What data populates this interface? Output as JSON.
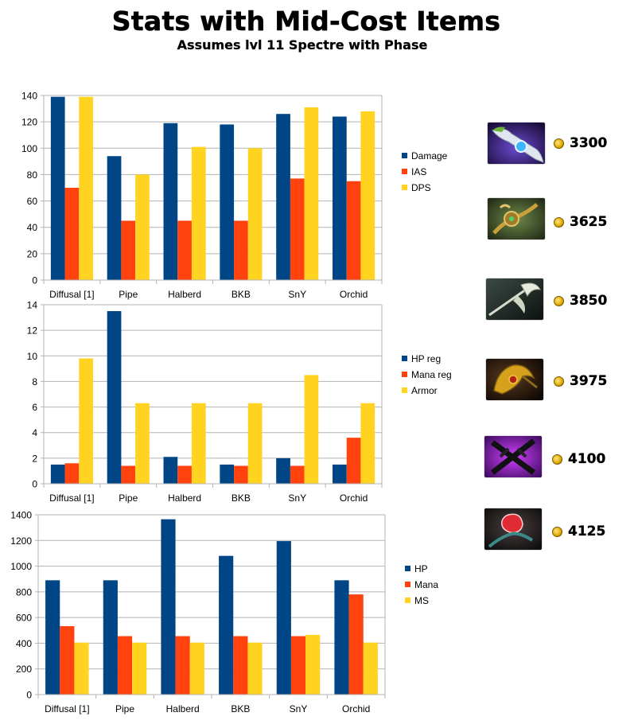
{
  "title": "Stats with Mid-Cost Items",
  "subtitle": "Assumes lvl 11 Spectre with Phase",
  "colors": {
    "series1": "#004586",
    "series2": "#ff420e",
    "series3": "#ffd320",
    "grid": "#b3b3b3"
  },
  "items": [
    {
      "icon": "diffusal-blade-icon",
      "cost": "3300"
    },
    {
      "icon": "pipe-of-insight-icon",
      "cost": "3625"
    },
    {
      "icon": "heavens-halberd-icon",
      "cost": "3850"
    },
    {
      "icon": "black-king-bar-icon",
      "cost": "3975"
    },
    {
      "icon": "sange-and-yasha-icon",
      "cost": "4100"
    },
    {
      "icon": "orchid-malevolence-icon",
      "cost": "4125"
    }
  ],
  "chart_data": [
    {
      "type": "bar",
      "categories": [
        "Diffusal [1]",
        "Pipe",
        "Halberd",
        "BKB",
        "SnY",
        "Orchid"
      ],
      "ylim": [
        0,
        140
      ],
      "yticks": [
        "0",
        "20",
        "40",
        "60",
        "80",
        "100",
        "120",
        "140"
      ],
      "grid": true,
      "legend": "right",
      "series": [
        {
          "name": "Damage",
          "values": [
            139,
            94,
            119,
            118,
            126,
            124
          ]
        },
        {
          "name": "IAS",
          "values": [
            70,
            45,
            45,
            45,
            77,
            75
          ]
        },
        {
          "name": "DPS",
          "values": [
            139,
            80,
            101,
            100,
            131,
            128
          ]
        }
      ]
    },
    {
      "type": "bar",
      "categories": [
        "Diffusal [1]",
        "Pipe",
        "Halberd",
        "BKB",
        "SnY",
        "Orchid"
      ],
      "ylim": [
        0,
        14
      ],
      "yticks": [
        "0",
        "2",
        "4",
        "6",
        "8",
        "10",
        "12",
        "14"
      ],
      "grid": true,
      "legend": "right",
      "series": [
        {
          "name": "HP reg",
          "values": [
            1.5,
            13.5,
            2.1,
            1.5,
            2.0,
            1.5
          ]
        },
        {
          "name": "Mana reg",
          "values": [
            1.6,
            1.4,
            1.4,
            1.4,
            1.4,
            3.6
          ]
        },
        {
          "name": "Armor",
          "values": [
            9.8,
            6.3,
            6.3,
            6.3,
            8.5,
            6.3
          ]
        }
      ]
    },
    {
      "type": "bar",
      "categories": [
        "Diffusal [1]",
        "Pipe",
        "Halberd",
        "BKB",
        "SnY",
        "Orchid"
      ],
      "ylim": [
        0,
        1400
      ],
      "yticks": [
        "0",
        "200",
        "400",
        "600",
        "800",
        "1000",
        "1200",
        "1400"
      ],
      "grid": true,
      "legend": "right",
      "series": [
        {
          "name": "HP",
          "values": [
            890,
            890,
            1365,
            1080,
            1195,
            890
          ]
        },
        {
          "name": "Mana",
          "values": [
            533,
            455,
            455,
            455,
            455,
            780
          ]
        },
        {
          "name": "MS",
          "values": [
            405,
            405,
            405,
            405,
            465,
            405
          ]
        }
      ]
    }
  ]
}
